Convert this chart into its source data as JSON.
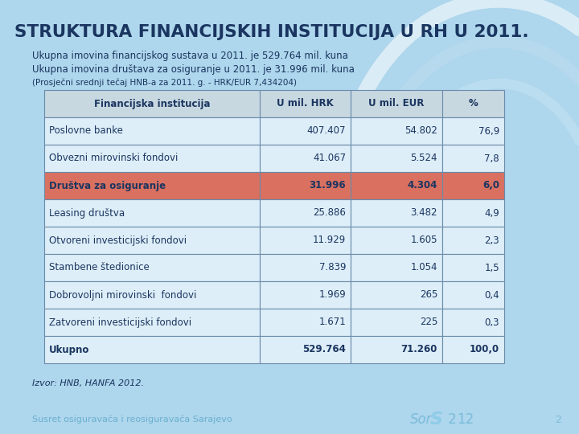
{
  "title": "STRUKTURA FINANCIJSKIH INSTITUCIJA U RH U 2011.",
  "subtitle1": "Ukupna imovina financijskog sustava u 2011. je 529.764 mil. kuna",
  "subtitle2": "Ukupna imovina društava za osiguranje u 2011. je 31.996 mil. kuna",
  "subtitle3": "(Prosječni srednji tečaj HNB-a za 2011. g. - HRK/EUR 7,434204)",
  "footer1": "Izvor: HNB, HANFA 2012.",
  "bg_color": "#aed6ec",
  "title_color": "#1a3560",
  "subtitle_color": "#1a3560",
  "table_header_bg": "#c8d8e0",
  "table_header_color": "#1a3560",
  "table_row_bg": "#ddeef8",
  "table_row_highlight_bg": "#d97060",
  "table_row_text_color": "#1a3560",
  "table_border_color": "#6a8aaa",
  "columns": [
    "Financijska institucija",
    "U mil. HRK",
    "U mil. EUR",
    "%"
  ],
  "rows": [
    [
      "Poslovne banke",
      "407.407",
      "54.802",
      "76,9"
    ],
    [
      "Obvezni mirovinski fondovi",
      "41.067",
      "5.524",
      "7,8"
    ],
    [
      "Društva za osiguranje",
      "31.996",
      "4.304",
      "6,0"
    ],
    [
      "Leasing društva",
      "25.886",
      "3.482",
      "4,9"
    ],
    [
      "Otvoreni investicijski fondovi",
      "11.929",
      "1.605",
      "2,3"
    ],
    [
      "Stambene štedionice",
      "7.839",
      "1.054",
      "1,5"
    ],
    [
      "Dobrovoljni mirovinski  fondovi",
      "1.969",
      "265",
      "0,4"
    ],
    [
      "Zatvoreni investicijski fondovi",
      "1.671",
      "225",
      "0,3"
    ],
    [
      "Ukupno",
      "529.764",
      "71.260",
      "100,0"
    ]
  ],
  "highlighted_row": 2,
  "total_row": 8,
  "footer_bg": "#aed6ec",
  "footer_text_color": "#6ab0d0",
  "footer_sor_color": "#7abcdc",
  "footer_sor_s_color": "#8ecce8"
}
